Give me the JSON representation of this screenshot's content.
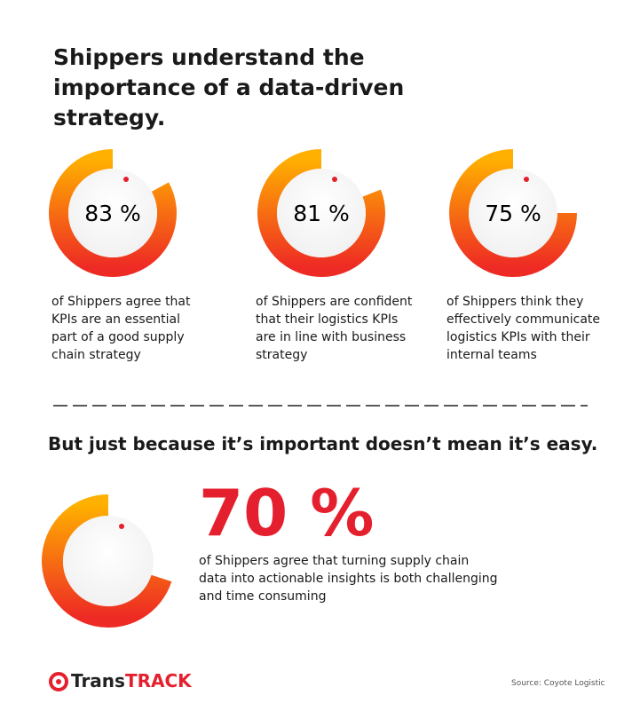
{
  "header": {
    "title": "Shippers understand the importance of a data-driven strategy."
  },
  "stats": [
    {
      "value": 83,
      "label": "83 %",
      "text": "of Shippers agree that KPIs are an essential part of a good supply chain strategy"
    },
    {
      "value": 81,
      "label": "81 %",
      "text": "of Shippers are confident that their logistics KPIs are in line with business strategy"
    },
    {
      "value": 75,
      "label": "75 %",
      "text": "of Shippers think they effectively communicate logistics KPIs with their internal teams"
    }
  ],
  "section": {
    "title": "But just because it’s important doesn’t mean it’s easy.",
    "stat": {
      "value": 70,
      "label": "70 %",
      "text": "of Shippers agree that turning supply chain data into actionable insights is both challenging and time consuming"
    }
  },
  "footer": {
    "logo_prefix": "Trans",
    "logo_suffix": "TRACK",
    "source": "Source:  Coyote Logistic"
  }
}
